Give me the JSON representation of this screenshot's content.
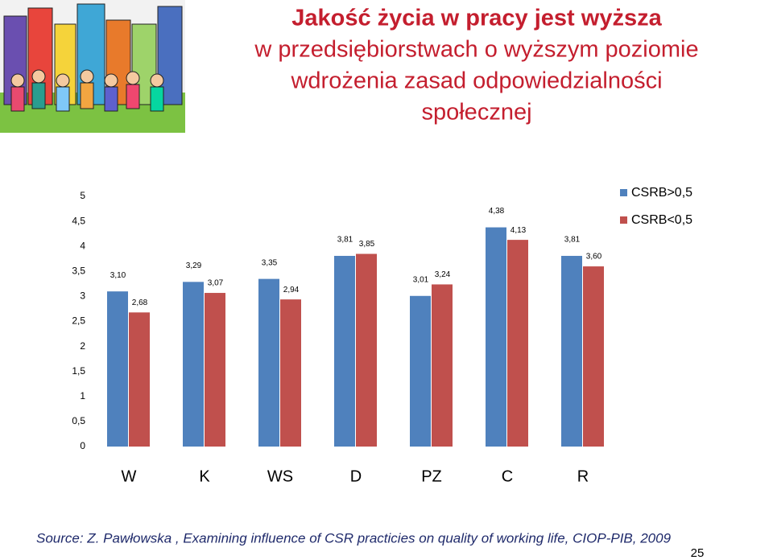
{
  "title_lines": [
    "Jakość życia w pracy jest wyższa",
    "w przedsiębiorstwach o wyższym poziomie",
    "wdrożenia zasad odpowiedzialności",
    "społecznej"
  ],
  "chart_data": {
    "type": "bar",
    "categories": [
      "W",
      "K",
      "WS",
      "D",
      "PZ",
      "C",
      "R"
    ],
    "series": [
      {
        "name": "CSRB>0,5",
        "color": "#4f81bd",
        "values": [
          3.1,
          3.29,
          3.35,
          3.81,
          3.01,
          4.38,
          3.81
        ],
        "value_labels": [
          "3,10",
          "3,29",
          "3,35",
          "3,81",
          "3,01",
          "4,38",
          "3,81"
        ]
      },
      {
        "name": "CSRB<0,5",
        "color": "#c0504d",
        "values": [
          2.68,
          3.07,
          2.94,
          3.85,
          3.24,
          4.13,
          3.6
        ],
        "value_labels": [
          "2,68",
          "3,07",
          "2,94",
          "3,85",
          "3,24",
          "4,13",
          "3,60"
        ]
      }
    ],
    "ylim": [
      0,
      5
    ],
    "yticks": [
      0,
      {
        "value": 0.5,
        "label": "0,5"
      },
      1,
      {
        "value": 1.5,
        "label": "1,5"
      },
      2,
      {
        "value": 2.5,
        "label": "2,5"
      },
      3,
      {
        "value": 3.5,
        "label": "3,5"
      },
      4,
      {
        "value": 4.5,
        "label": "4,5"
      },
      5
    ],
    "legend": "top-right"
  },
  "source": "Source: Z. Pawłowska , Examining  influence of CSR practicies on quality of working life, CIOP-PIB, 2009",
  "page_number": "25"
}
